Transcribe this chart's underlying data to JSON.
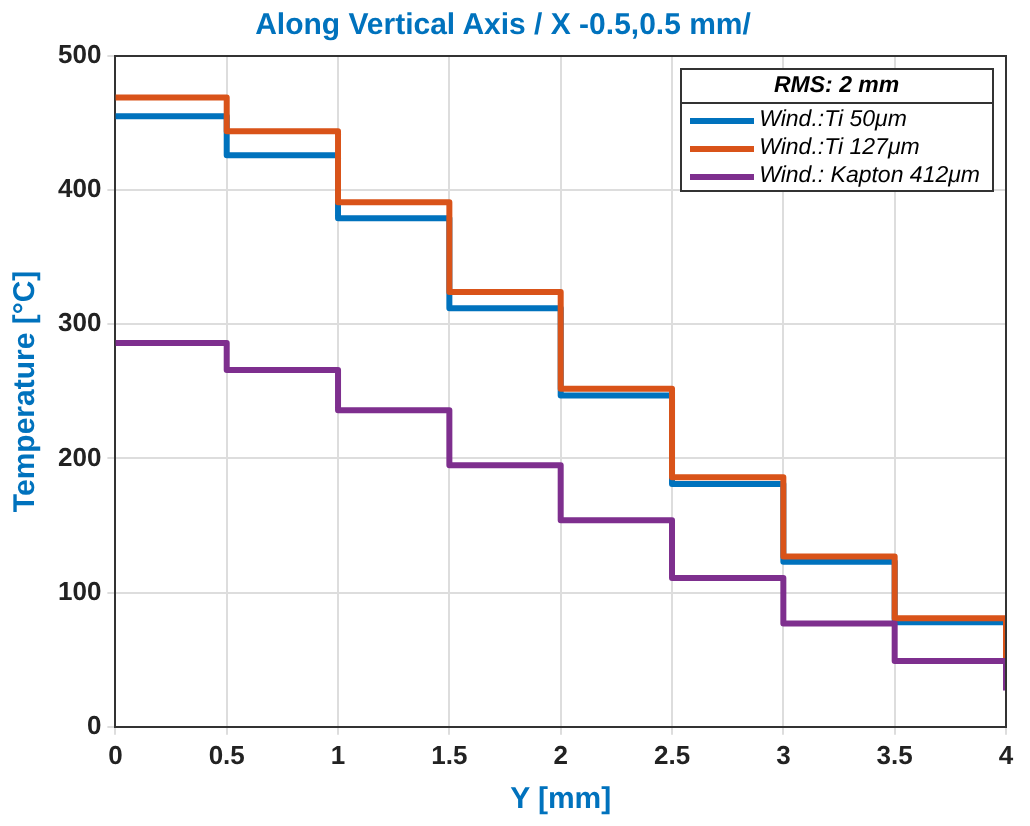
{
  "chart_data": {
    "type": "step",
    "title": "Along Vertical Axis / X -0.5,0.5 mm/",
    "xlabel": "Y [mm]",
    "ylabel": "Temperature [°C]",
    "legend_title": "RMS: 2 mm",
    "x": [
      0,
      0.5,
      1,
      1.5,
      2,
      2.5,
      3,
      3.5,
      4
    ],
    "series": [
      {
        "name": "Wind.:Ti 50μm",
        "color": "#0072bd",
        "values": [
          455,
          426,
          379,
          312,
          247,
          181,
          123,
          78,
          50
        ]
      },
      {
        "name": "Wind.:Ti 127μm",
        "color": "#d95319",
        "values": [
          469,
          444,
          391,
          324,
          252,
          186,
          127,
          81,
          50
        ]
      },
      {
        "name": "Wind.: Kapton 412μm",
        "color": "#7e2f8e",
        "values": [
          286,
          266,
          236,
          195,
          154,
          111,
          77,
          49,
          27
        ]
      }
    ],
    "xlim": [
      0,
      4
    ],
    "xticks": [
      0,
      0.5,
      1,
      1.5,
      2,
      2.5,
      3,
      3.5,
      4
    ],
    "ylim": [
      0,
      500
    ],
    "yticks": [
      0,
      100,
      200,
      300,
      400,
      500
    ],
    "grid": true,
    "legend": "top right",
    "marker": "none",
    "line_style": "solid"
  }
}
